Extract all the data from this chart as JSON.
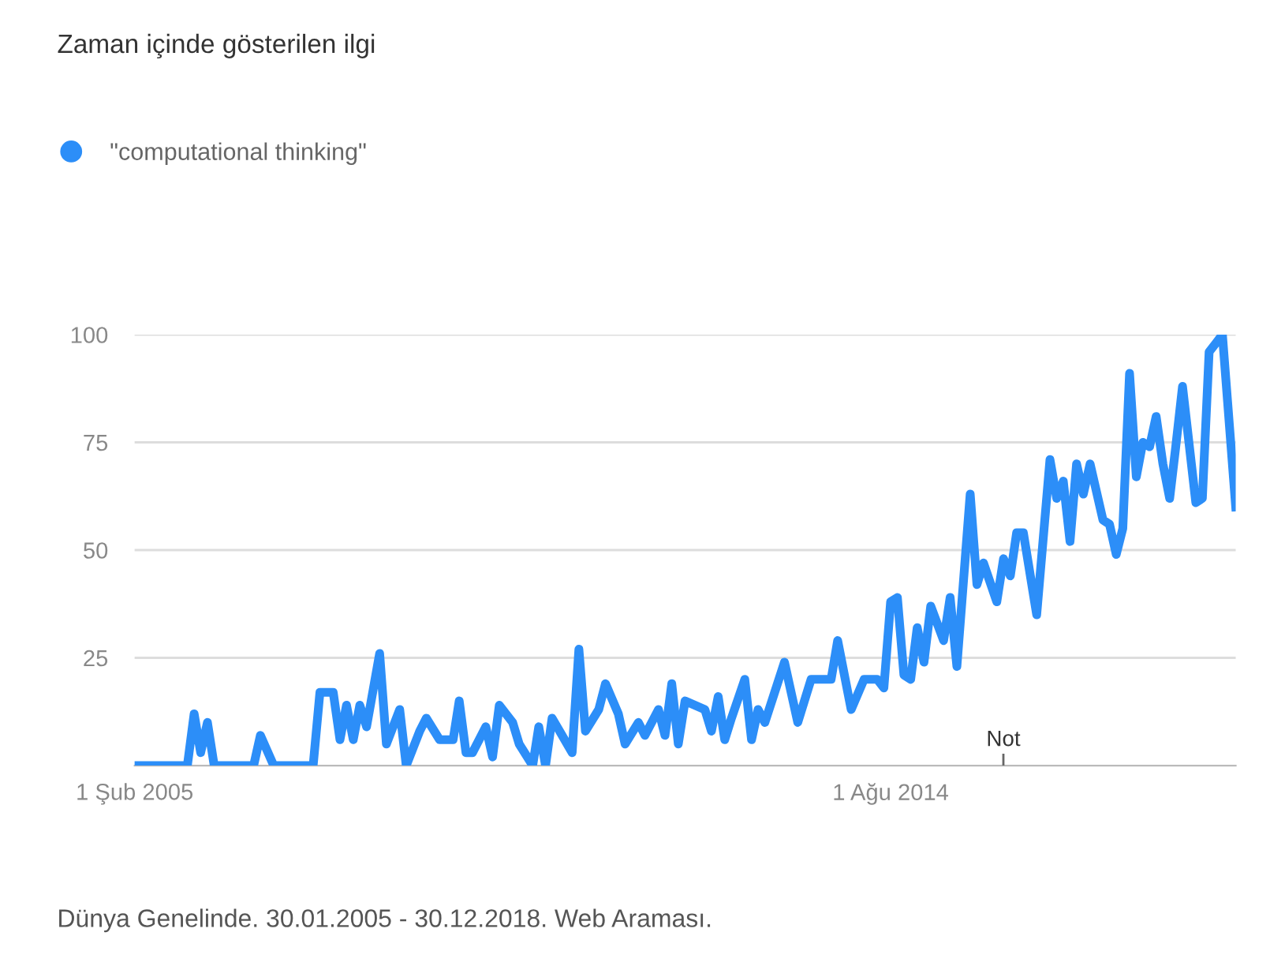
{
  "chart_data": {
    "type": "line",
    "title": "Zaman içinde gösterilen ilgi",
    "series": [
      {
        "name": "\"computational thinking\"",
        "color": "#2c8ef8",
        "x": [
          "2005-02",
          "2005-10",
          "2005-11",
          "2005-12",
          "2006-01",
          "2006-02",
          "2006-08",
          "2006-09",
          "2006-11",
          "2007-05",
          "2007-06",
          "2007-08",
          "2007-09",
          "2007-10",
          "2007-11",
          "2007-12",
          "2008-01",
          "2008-03",
          "2008-04",
          "2008-06",
          "2008-07",
          "2008-09",
          "2008-10",
          "2008-12",
          "2009-02",
          "2009-03",
          "2009-04",
          "2009-05",
          "2009-07",
          "2009-08",
          "2009-09",
          "2009-11",
          "2009-12",
          "2010-02",
          "2010-03",
          "2010-04",
          "2010-05",
          "2010-08",
          "2010-09",
          "2010-10",
          "2010-12",
          "2011-01",
          "2011-03",
          "2011-04",
          "2011-06",
          "2011-07",
          "2011-09",
          "2011-10",
          "2011-11",
          "2011-12",
          "2012-01",
          "2012-04",
          "2012-05",
          "2012-06",
          "2012-07",
          "2012-08",
          "2012-10",
          "2012-11",
          "2012-12",
          "2013-01",
          "2013-04",
          "2013-06",
          "2013-08",
          "2013-11",
          "2013-12",
          "2014-02",
          "2014-04",
          "2014-06",
          "2014-07",
          "2014-08",
          "2014-09",
          "2014-10",
          "2014-11",
          "2014-12",
          "2015-01",
          "2015-02",
          "2015-04",
          "2015-05",
          "2015-06",
          "2015-08",
          "2015-09",
          "2015-10",
          "2015-12",
          "2016-01",
          "2016-02",
          "2016-03",
          "2016-04",
          "2016-06",
          "2016-08",
          "2016-09",
          "2016-10",
          "2016-11",
          "2016-12",
          "2017-01",
          "2017-02",
          "2017-04",
          "2017-05",
          "2017-06",
          "2017-07",
          "2017-08",
          "2017-09",
          "2017-10",
          "2017-11",
          "2017-12",
          "2018-01",
          "2018-02",
          "2018-03",
          "2018-04",
          "2018-06",
          "2018-07",
          "2018-08",
          "2018-09",
          "2018-10",
          "2018-12"
        ],
        "values": [
          0,
          0,
          12,
          3,
          10,
          0,
          0,
          7,
          0,
          0,
          17,
          17,
          6,
          14,
          6,
          14,
          9,
          26,
          5,
          13,
          0,
          8,
          11,
          6,
          6,
          15,
          3,
          3,
          9,
          2,
          14,
          10,
          5,
          0,
          9,
          0,
          11,
          3,
          27,
          8,
          13,
          19,
          12,
          5,
          10,
          7,
          13,
          7,
          19,
          5,
          15,
          13,
          8,
          16,
          6,
          11,
          20,
          6,
          13,
          10,
          24,
          10,
          20,
          20,
          29,
          13,
          20,
          20,
          18,
          38,
          39,
          21,
          20,
          32,
          24,
          37,
          29,
          39,
          23,
          63,
          42,
          47,
          38,
          48,
          44,
          54,
          54,
          35,
          71,
          62,
          66,
          52,
          70,
          63,
          70,
          57,
          56,
          49,
          55,
          91,
          67,
          75,
          74,
          81,
          70,
          62,
          74,
          88,
          61,
          62,
          96,
          98,
          100,
          60
        ]
      }
    ],
    "xlim": [
      "2005-02-01",
      "2018-12-01"
    ],
    "xticks": [
      {
        "value": "2005-02-01",
        "label": "1 Şub 2005"
      },
      {
        "value": "2014-08-01",
        "label": "1 Ağu 2014"
      }
    ],
    "ylim": [
      0,
      100
    ],
    "yticks": [
      25,
      50,
      75,
      100
    ],
    "grid": "y",
    "legend": "top left",
    "marker": "none",
    "line_style": "solid",
    "annotations": [
      "Not",
      "Dünya Genelinde. 30.01.2005 - 30.12.2018. Web Araması."
    ]
  }
}
